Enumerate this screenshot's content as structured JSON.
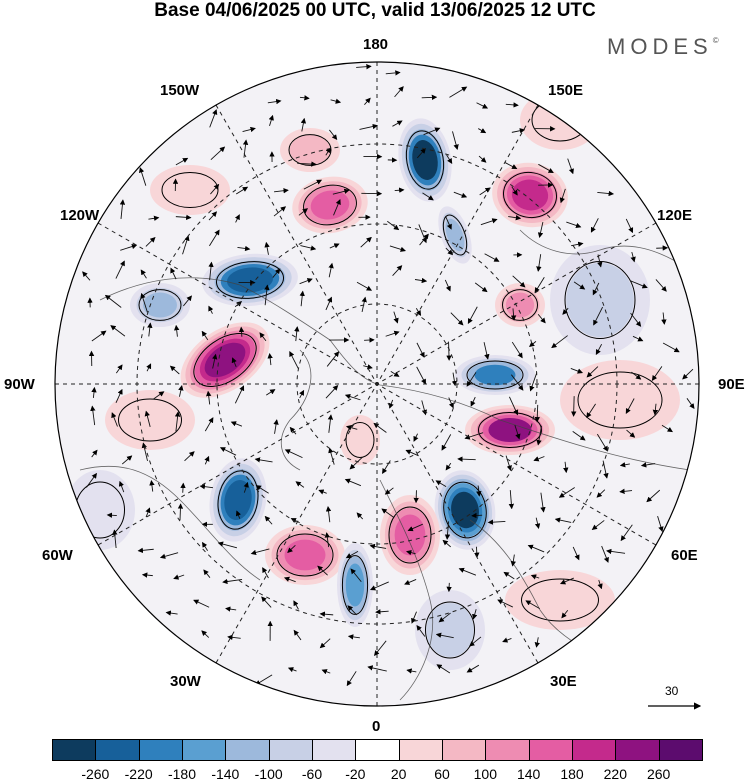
{
  "title": "Base 04/06/2025 00 UTC, valid 13/06/2025 12 UTC",
  "brand": "MODES",
  "brand_mark": "©",
  "longitude_labels": {
    "top": "180",
    "top_left": "150W",
    "top_right": "150E",
    "upper_left": "120W",
    "upper_right": "120E",
    "left": "90W",
    "right": "90E",
    "lower_left": "60W",
    "lower_right": "60E",
    "bottom_left": "30W",
    "bottom_right": "30E",
    "bottom": "0"
  },
  "reference_vector": {
    "label": "30"
  },
  "colors": {
    "neg_260": "#0d3b5e",
    "neg_220": "#17609a",
    "neg_180": "#2f80bd",
    "neg_140": "#5a9fd1",
    "neg_100": "#9db9dc",
    "neg_60": "#c8d0e6",
    "neg_20": "#e3e1ef",
    "zero": "#ffffff",
    "pos_20": "#f8d6d8",
    "pos_60": "#f4b8c4",
    "pos_100": "#ee8cb2",
    "pos_140": "#e45da3",
    "pos_180": "#c42a8c",
    "pos_220": "#8e1280",
    "pos_260": "#5c0c6e"
  },
  "colorbar": {
    "ticks": [
      "-260",
      "-220",
      "-180",
      "-140",
      "-100",
      "-60",
      "-20",
      "20",
      "60",
      "100",
      "140",
      "180",
      "220",
      "260"
    ],
    "colors": [
      "#0d3b5e",
      "#17609a",
      "#2f80bd",
      "#5a9fd1",
      "#9db9dc",
      "#c8d0e6",
      "#e3e1ef",
      "#ffffff",
      "#f8d6d8",
      "#f4b8c4",
      "#ee8cb2",
      "#e45da3",
      "#c42a8c",
      "#8e1280",
      "#5c0c6e"
    ]
  }
}
